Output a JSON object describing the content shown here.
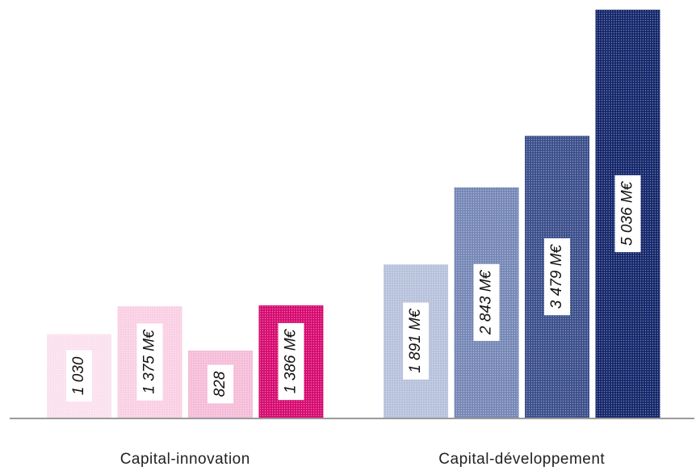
{
  "chart_data": {
    "type": "bar",
    "groups": [
      {
        "name": "Capital-innovation",
        "values": [
          1030,
          1375,
          828,
          1386
        ],
        "value_labels": [
          "1 030",
          "1 375 M€",
          "828",
          "1 386 M€"
        ],
        "colors": [
          "#fbe0ee",
          "#f9cfe3",
          "#f5bcd8",
          "#d60a6f"
        ]
      },
      {
        "name": "Capital-développement",
        "values": [
          1891,
          2843,
          3479,
          5036
        ],
        "value_labels": [
          "1 891 M€",
          "2 843 M€",
          "3 479 M€",
          "5 036 M€"
        ],
        "colors": [
          "#b6c1db",
          "#7587b6",
          "#3b4f8b",
          "#14276b"
        ]
      }
    ]
  }
}
